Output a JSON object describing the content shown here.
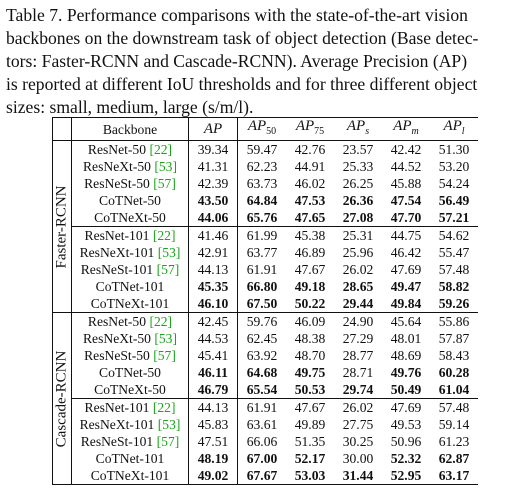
{
  "caption": {
    "lines": [
      "Table 7. Performance comparisons with the state-of-the-art vision",
      "backbones on the downstream task of object detection (Base detec-",
      "tors: Faster-RCNN and Cascade-RCNN). Average Precision (AP)",
      "is reported at different IoU thresholds and for three different object",
      "sizes: small, medium, large (s/m/l)."
    ]
  },
  "table": {
    "header": {
      "backbone": "Backbone",
      "cols": [
        {
          "base": "AP",
          "sub": ""
        },
        {
          "base": "AP",
          "sub": "50"
        },
        {
          "base": "AP",
          "sub": "75"
        },
        {
          "base": "AP",
          "sub": "s"
        },
        {
          "base": "AP",
          "sub": "m"
        },
        {
          "base": "AP",
          "sub": "l"
        }
      ]
    },
    "groups": [
      {
        "label": "Faster-RCNN",
        "blocks": [
          [
            {
              "name": "ResNet-50",
              "cite": "[22]",
              "vals": [
                "39.34",
                "59.47",
                "42.76",
                "23.57",
                "42.42",
                "51.30"
              ],
              "bold": [
                false,
                false,
                false,
                false,
                false,
                false
              ]
            },
            {
              "name": "ResNeXt-50",
              "cite": "[53]",
              "vals": [
                "41.31",
                "62.23",
                "44.91",
                "25.33",
                "44.52",
                "53.20"
              ],
              "bold": [
                false,
                false,
                false,
                false,
                false,
                false
              ]
            },
            {
              "name": "ResNeSt-50",
              "cite": "[57]",
              "vals": [
                "42.39",
                "63.73",
                "46.02",
                "26.25",
                "45.88",
                "54.24"
              ],
              "bold": [
                false,
                false,
                false,
                false,
                false,
                false
              ]
            },
            {
              "name": "CoTNet-50",
              "cite": "",
              "vals": [
                "43.50",
                "64.84",
                "47.53",
                "26.36",
                "47.54",
                "56.49"
              ],
              "bold": [
                true,
                true,
                true,
                true,
                true,
                true
              ]
            },
            {
              "name": "CoTNeXt-50",
              "cite": "",
              "vals": [
                "44.06",
                "65.76",
                "47.65",
                "27.08",
                "47.70",
                "57.21"
              ],
              "bold": [
                true,
                true,
                true,
                true,
                true,
                true
              ]
            }
          ],
          [
            {
              "name": "ResNet-101",
              "cite": "[22]",
              "vals": [
                "41.46",
                "61.99",
                "45.38",
                "25.31",
                "44.75",
                "54.62"
              ],
              "bold": [
                false,
                false,
                false,
                false,
                false,
                false
              ]
            },
            {
              "name": "ResNeXt-101",
              "cite": "[53]",
              "vals": [
                "42.91",
                "63.77",
                "46.89",
                "25.96",
                "46.42",
                "55.47"
              ],
              "bold": [
                false,
                false,
                false,
                false,
                false,
                false
              ]
            },
            {
              "name": "ResNeSt-101",
              "cite": "[57]",
              "vals": [
                "44.13",
                "61.91",
                "47.67",
                "26.02",
                "47.69",
                "57.48"
              ],
              "bold": [
                false,
                false,
                false,
                false,
                false,
                false
              ]
            },
            {
              "name": "CoTNet-101",
              "cite": "",
              "vals": [
                "45.35",
                "66.80",
                "49.18",
                "28.65",
                "49.47",
                "58.82"
              ],
              "bold": [
                true,
                true,
                true,
                true,
                true,
                true
              ]
            },
            {
              "name": "CoTNeXt-101",
              "cite": "",
              "vals": [
                "46.10",
                "67.50",
                "50.22",
                "29.44",
                "49.84",
                "59.26"
              ],
              "bold": [
                true,
                true,
                true,
                true,
                true,
                true
              ]
            }
          ]
        ]
      },
      {
        "label": "Cascade-RCNN",
        "blocks": [
          [
            {
              "name": "ResNet-50",
              "cite": "[22]",
              "vals": [
                "42.45",
                "59.76",
                "46.09",
                "24.90",
                "45.64",
                "55.86"
              ],
              "bold": [
                false,
                false,
                false,
                false,
                false,
                false
              ]
            },
            {
              "name": "ResNeXt-50",
              "cite": "[53]",
              "vals": [
                "44.53",
                "62.45",
                "48.38",
                "27.29",
                "48.01",
                "57.87"
              ],
              "bold": [
                false,
                false,
                false,
                false,
                false,
                false
              ]
            },
            {
              "name": "ResNeSt-50",
              "cite": "[57]",
              "vals": [
                "45.41",
                "63.92",
                "48.70",
                "28.77",
                "48.69",
                "58.43"
              ],
              "bold": [
                false,
                false,
                false,
                false,
                false,
                false
              ]
            },
            {
              "name": "CoTNet-50",
              "cite": "",
              "vals": [
                "46.11",
                "64.68",
                "49.75",
                "28.71",
                "49.76",
                "60.28"
              ],
              "bold": [
                true,
                true,
                true,
                false,
                true,
                true
              ]
            },
            {
              "name": "CoTNeXt-50",
              "cite": "",
              "vals": [
                "46.79",
                "65.54",
                "50.53",
                "29.74",
                "50.49",
                "61.04"
              ],
              "bold": [
                true,
                true,
                true,
                true,
                true,
                true
              ]
            }
          ],
          [
            {
              "name": "ResNet-101",
              "cite": "[22]",
              "vals": [
                "44.13",
                "61.91",
                "47.67",
                "26.02",
                "47.69",
                "57.48"
              ],
              "bold": [
                false,
                false,
                false,
                false,
                false,
                false
              ]
            },
            {
              "name": "ResNeXt-101",
              "cite": "[53]",
              "vals": [
                "45.83",
                "63.61",
                "49.89",
                "27.75",
                "49.53",
                "59.14"
              ],
              "bold": [
                false,
                false,
                false,
                false,
                false,
                false
              ]
            },
            {
              "name": "ResNeSt-101",
              "cite": "[57]",
              "vals": [
                "47.51",
                "66.06",
                "51.35",
                "30.25",
                "50.96",
                "61.23"
              ],
              "bold": [
                false,
                false,
                false,
                false,
                false,
                false
              ]
            },
            {
              "name": "CoTNet-101",
              "cite": "",
              "vals": [
                "48.19",
                "67.00",
                "52.17",
                "30.00",
                "52.32",
                "62.87"
              ],
              "bold": [
                true,
                true,
                true,
                false,
                true,
                true
              ]
            },
            {
              "name": "CoTNeXt-101",
              "cite": "",
              "vals": [
                "49.02",
                "67.67",
                "53.03",
                "31.44",
                "52.95",
                "63.17"
              ],
              "bold": [
                true,
                true,
                true,
                true,
                true,
                true
              ]
            }
          ]
        ]
      }
    ]
  }
}
